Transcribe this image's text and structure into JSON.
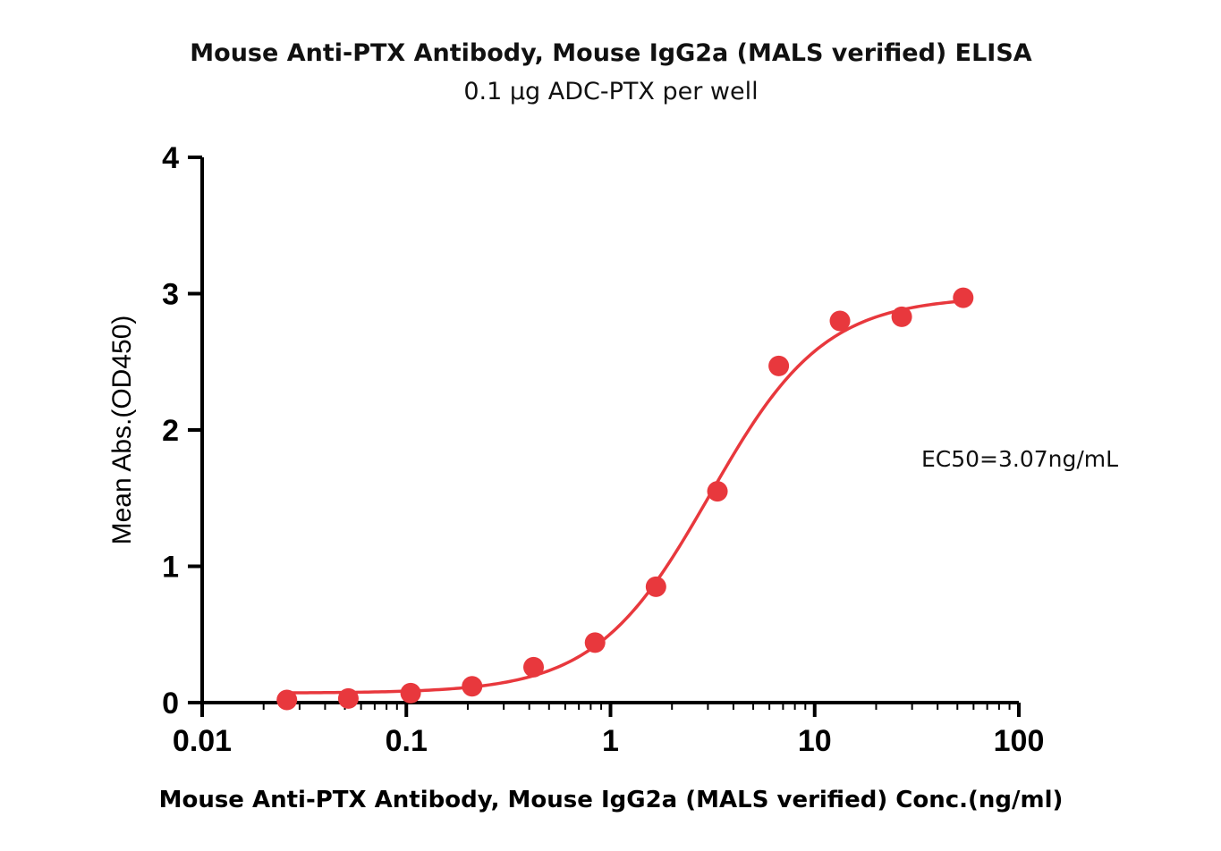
{
  "chart_data": {
    "type": "scatter",
    "title": "Mouse Anti-PTX Antibody, Mouse IgG2a (MALS verified) ELISA",
    "subtitle": "0.1 µg  ADC-PTX per well",
    "xlabel": "Mouse Anti-PTX Antibody, Mouse IgG2a (MALS verified) Conc.(ng/ml)",
    "ylabel": "Mean Abs.(OD450)",
    "x_scale": "log",
    "xlim": [
      0.01,
      100
    ],
    "ylim": [
      0,
      4
    ],
    "x_ticks": [
      {
        "value": 0.01,
        "label": "0.01"
      },
      {
        "value": 0.1,
        "label": "0.1"
      },
      {
        "value": 1,
        "label": "1"
      },
      {
        "value": 10,
        "label": "10"
      },
      {
        "value": 100,
        "label": "100"
      }
    ],
    "y_ticks": [
      {
        "value": 0,
        "label": "0"
      },
      {
        "value": 1,
        "label": "1"
      },
      {
        "value": 2,
        "label": "2"
      },
      {
        "value": 3,
        "label": "3"
      },
      {
        "value": 4,
        "label": "4"
      }
    ],
    "grid": false,
    "legend": "none",
    "series": [
      {
        "color": "#e8383d",
        "marker": "circle",
        "points": [
          {
            "x": 0.026,
            "y": 0.02
          },
          {
            "x": 0.052,
            "y": 0.03
          },
          {
            "x": 0.105,
            "y": 0.07
          },
          {
            "x": 0.21,
            "y": 0.12
          },
          {
            "x": 0.42,
            "y": 0.26
          },
          {
            "x": 0.84,
            "y": 0.44
          },
          {
            "x": 1.67,
            "y": 0.85
          },
          {
            "x": 3.34,
            "y": 1.55
          },
          {
            "x": 6.67,
            "y": 2.47
          },
          {
            "x": 13.3,
            "y": 2.8
          },
          {
            "x": 26.7,
            "y": 2.83
          },
          {
            "x": 53.4,
            "y": 2.97
          }
        ],
        "fit": {
          "model": "4PL",
          "bottom": 0.07,
          "top": 2.98,
          "ec50": 3.07,
          "hill": 1.55,
          "x_range": [
            0.026,
            53.4
          ]
        }
      }
    ],
    "annotations": [
      {
        "text": "EC50=3.07ng/mL"
      }
    ]
  }
}
